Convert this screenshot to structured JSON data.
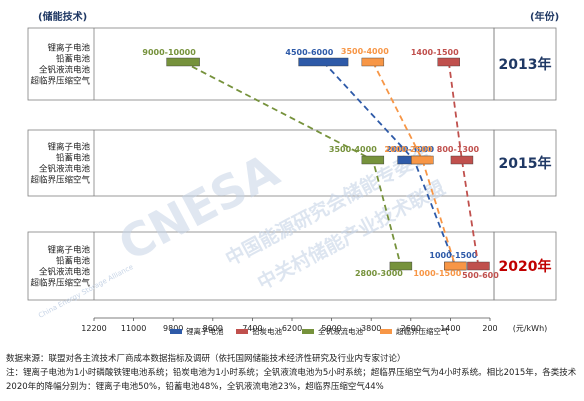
{
  "header": {
    "tech_label": "(储能技术)",
    "year_label": "(年份)"
  },
  "chart_data": {
    "type": "scatter",
    "x_axis": {
      "ticks": [
        12200,
        11000,
        9800,
        8600,
        7400,
        6200,
        5000,
        3800,
        2600,
        1400,
        200
      ],
      "unit": "(元/kWh)",
      "reversed": true,
      "range": [
        12200,
        200
      ]
    },
    "years": [
      "2013年",
      "2015年",
      "2020年"
    ],
    "tech_labels": [
      "锂离子电池",
      "铅蓄电池",
      "全钒液流电池",
      "超临界压缩空气"
    ],
    "series": [
      {
        "name": "锂离子电池",
        "color": "#2e5aa8",
        "points": [
          {
            "year": "2013年",
            "low": 4500,
            "high": 6000,
            "label": "4500-6000"
          },
          {
            "year": "2015年",
            "low": 2000,
            "high": 3000,
            "label": "2000-3000"
          },
          {
            "year": "2020年",
            "low": 1000,
            "high": 1500,
            "label": "1000-1500"
          }
        ]
      },
      {
        "name": "铅炭电池",
        "color": "#c0504d",
        "points": [
          {
            "year": "2013年",
            "low": 1400,
            "high": 1500,
            "label": "1400-1500"
          },
          {
            "year": "2015年",
            "low": 800,
            "high": 1300,
            "label": "800-1300"
          },
          {
            "year": "2020年",
            "low": 500,
            "high": 600,
            "label": "500-600"
          }
        ]
      },
      {
        "name": "全钒液流电池",
        "color": "#76923c",
        "points": [
          {
            "year": "2013年",
            "low": 9000,
            "high": 10000,
            "label": "9000-10000"
          },
          {
            "year": "2015年",
            "low": 3500,
            "high": 4000,
            "label": "3500-4000"
          },
          {
            "year": "2020年",
            "low": 2800,
            "high": 3000,
            "label": "2800-3000"
          }
        ]
      },
      {
        "name": "超临界压缩空气",
        "color": "#f79646",
        "points": [
          {
            "year": "2013年",
            "low": 3500,
            "high": 4000,
            "label": "3500-4000"
          },
          {
            "year": "2015年",
            "low": 2000,
            "high": 2500,
            "label": "2000-2500"
          },
          {
            "year": "2020年",
            "low": 1000,
            "high": 1500,
            "label": "1000-1500"
          }
        ]
      }
    ]
  },
  "watermark": {
    "logo": "CNESA",
    "line1": "中国能源研究会储能专委会",
    "line2": "中关村储能产业技术联盟",
    "sub": "China Energy Storage Alliance"
  },
  "notes": [
    "数据来源：联盟对各主流技术厂商成本数据指标及调研（依托国网储能技术经济性研究及行业内专家讨论）",
    "注：锂离子电池为1小时磷酸铁锂电池系统；铅炭电池为1小时系统；全钒液流电池为5小时系统；超临界压缩空气为4小时系统。相比2015年，各类技术",
    "2020年的降幅分别为：锂离子电池50%，铅蓄电池48%，全钒液流电池23%，超临界压缩空气44%"
  ]
}
